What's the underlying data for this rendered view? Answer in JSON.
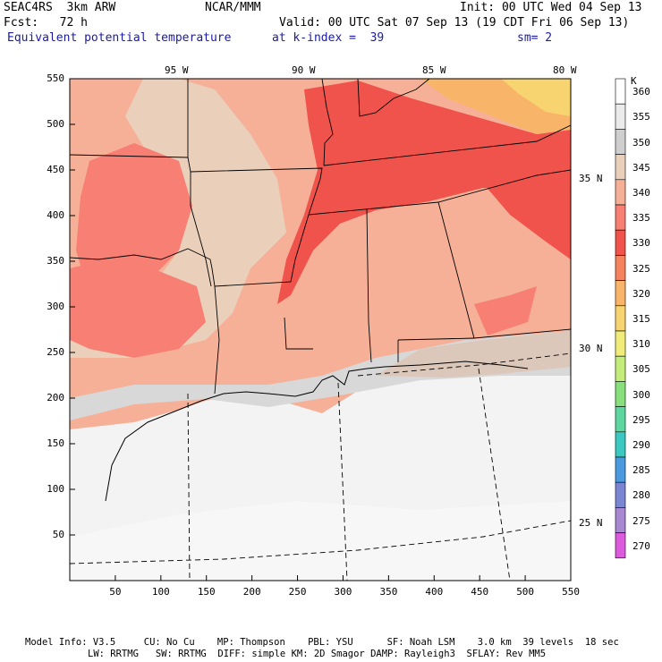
{
  "header": {
    "model": "SEAC4RS  3km ARW",
    "org": "NCAR/MMM",
    "init": "Init: 00 UTC Wed 04 Sep 13",
    "fcst": "Fcst:   72 h",
    "valid": "Valid: 00 UTC Sat 07 Sep 13 (19 CDT Fri 06 Sep 13)",
    "field": "Equivalent potential temperature",
    "level": "at k-index =  39",
    "smooth": "sm= 2"
  },
  "map": {
    "lon_labels": [
      "95 W",
      "90 W",
      "85 W",
      "80 W"
    ],
    "lat_labels": [
      "35 N",
      "30 N",
      "25 N"
    ],
    "x_ticks": [
      "50",
      "100",
      "150",
      "200",
      "250",
      "300",
      "350",
      "400",
      "450",
      "500",
      "550"
    ],
    "y_ticks": [
      "550",
      "500",
      "450",
      "400",
      "350",
      "300",
      "250",
      "200",
      "150",
      "100",
      "50"
    ]
  },
  "colorbar": {
    "unit": "K",
    "levels": [
      "360",
      "355",
      "350",
      "345",
      "340",
      "335",
      "330",
      "325",
      "320",
      "315",
      "310",
      "305",
      "300",
      "295",
      "290",
      "285",
      "280",
      "275",
      "270"
    ],
    "colors": [
      "#ffffff",
      "#ebebeb",
      "#cfcfcf",
      "#ead0bb",
      "#f6b098",
      "#f77f74",
      "#f0534c",
      "#f5835e",
      "#f8b56a",
      "#f8d470",
      "#f1ec7a",
      "#c4ec7a",
      "#88e07c",
      "#5ed6a0",
      "#3bc8c0",
      "#4b9ae0",
      "#7a86d2",
      "#a888d0",
      "#dc5adc"
    ]
  },
  "footer": {
    "line1": "Model Info: V3.5     CU: No Cu    MP: Thompson    PBL: YSU      SF: Noah LSM    3.0 km  39 levels  18 sec",
    "line2": "LW: RRTMG   SW: RRTMG  DIFF: simple KM: 2D Smagor DAMP: Rayleigh3  SFLAY: Rev MM5"
  }
}
